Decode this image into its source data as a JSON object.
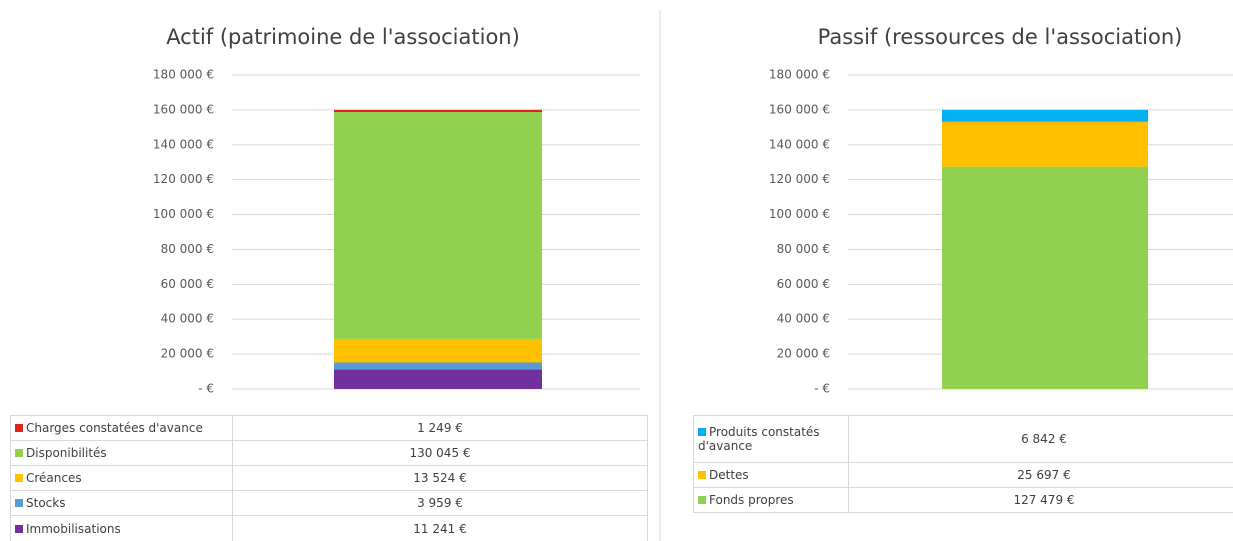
{
  "chart_data": [
    {
      "type": "bar",
      "stacked": true,
      "title": "Actif (patrimoine de l'association)",
      "ylim": [
        0,
        180000
      ],
      "yticks": [
        {
          "value": 0,
          "label": "- €"
        },
        {
          "value": 20000,
          "label": "20 000 €"
        },
        {
          "value": 40000,
          "label": "40 000 €"
        },
        {
          "value": 60000,
          "label": "60 000 €"
        },
        {
          "value": 80000,
          "label": "80 000 €"
        },
        {
          "value": 100000,
          "label": "100 000 €"
        },
        {
          "value": 120000,
          "label": "120 000 €"
        },
        {
          "value": 140000,
          "label": "140 000 €"
        },
        {
          "value": 160000,
          "label": "160 000 €"
        },
        {
          "value": 180000,
          "label": "180 000 €"
        }
      ],
      "grid": true,
      "series": [
        {
          "name": "Charges constatées d'avance",
          "color": "#e3201b",
          "values": [
            1249
          ],
          "value_labels": [
            "1 249 €"
          ]
        },
        {
          "name": "Disponibilités",
          "color": "#92d050",
          "values": [
            130045
          ],
          "value_labels": [
            "130 045 €"
          ]
        },
        {
          "name": "Créances",
          "color": "#ffc000",
          "values": [
            13524
          ],
          "value_labels": [
            "13 524 €"
          ]
        },
        {
          "name": "Stocks",
          "color": "#5b9bd5",
          "values": [
            3959
          ],
          "value_labels": [
            "3 959 €"
          ]
        },
        {
          "name": "Immobilisations",
          "color": "#7030a0",
          "values": [
            11241
          ],
          "value_labels": [
            "11 241 €"
          ]
        }
      ]
    },
    {
      "type": "bar",
      "stacked": true,
      "title": "Passif (ressources de l'association)",
      "ylim": [
        0,
        180000
      ],
      "yticks": [
        {
          "value": 0,
          "label": "- €"
        },
        {
          "value": 20000,
          "label": "20 000 €"
        },
        {
          "value": 40000,
          "label": "40 000 €"
        },
        {
          "value": 60000,
          "label": "60 000 €"
        },
        {
          "value": 80000,
          "label": "80 000 €"
        },
        {
          "value": 100000,
          "label": "100 000 €"
        },
        {
          "value": 120000,
          "label": "120 000 €"
        },
        {
          "value": 140000,
          "label": "140 000 €"
        },
        {
          "value": 160000,
          "label": "160 000 €"
        },
        {
          "value": 180000,
          "label": "180 000 €"
        }
      ],
      "grid": true,
      "series": [
        {
          "name": "Produits constatés d'avance",
          "color": "#00b0f0",
          "values": [
            6842
          ],
          "value_labels": [
            "6 842 €"
          ]
        },
        {
          "name": "Dettes",
          "color": "#ffc000",
          "values": [
            25697
          ],
          "value_labels": [
            "25 697 €"
          ]
        },
        {
          "name": "Fonds propres",
          "color": "#92d050",
          "values": [
            127479
          ],
          "value_labels": [
            "127 479 €"
          ]
        }
      ]
    }
  ]
}
